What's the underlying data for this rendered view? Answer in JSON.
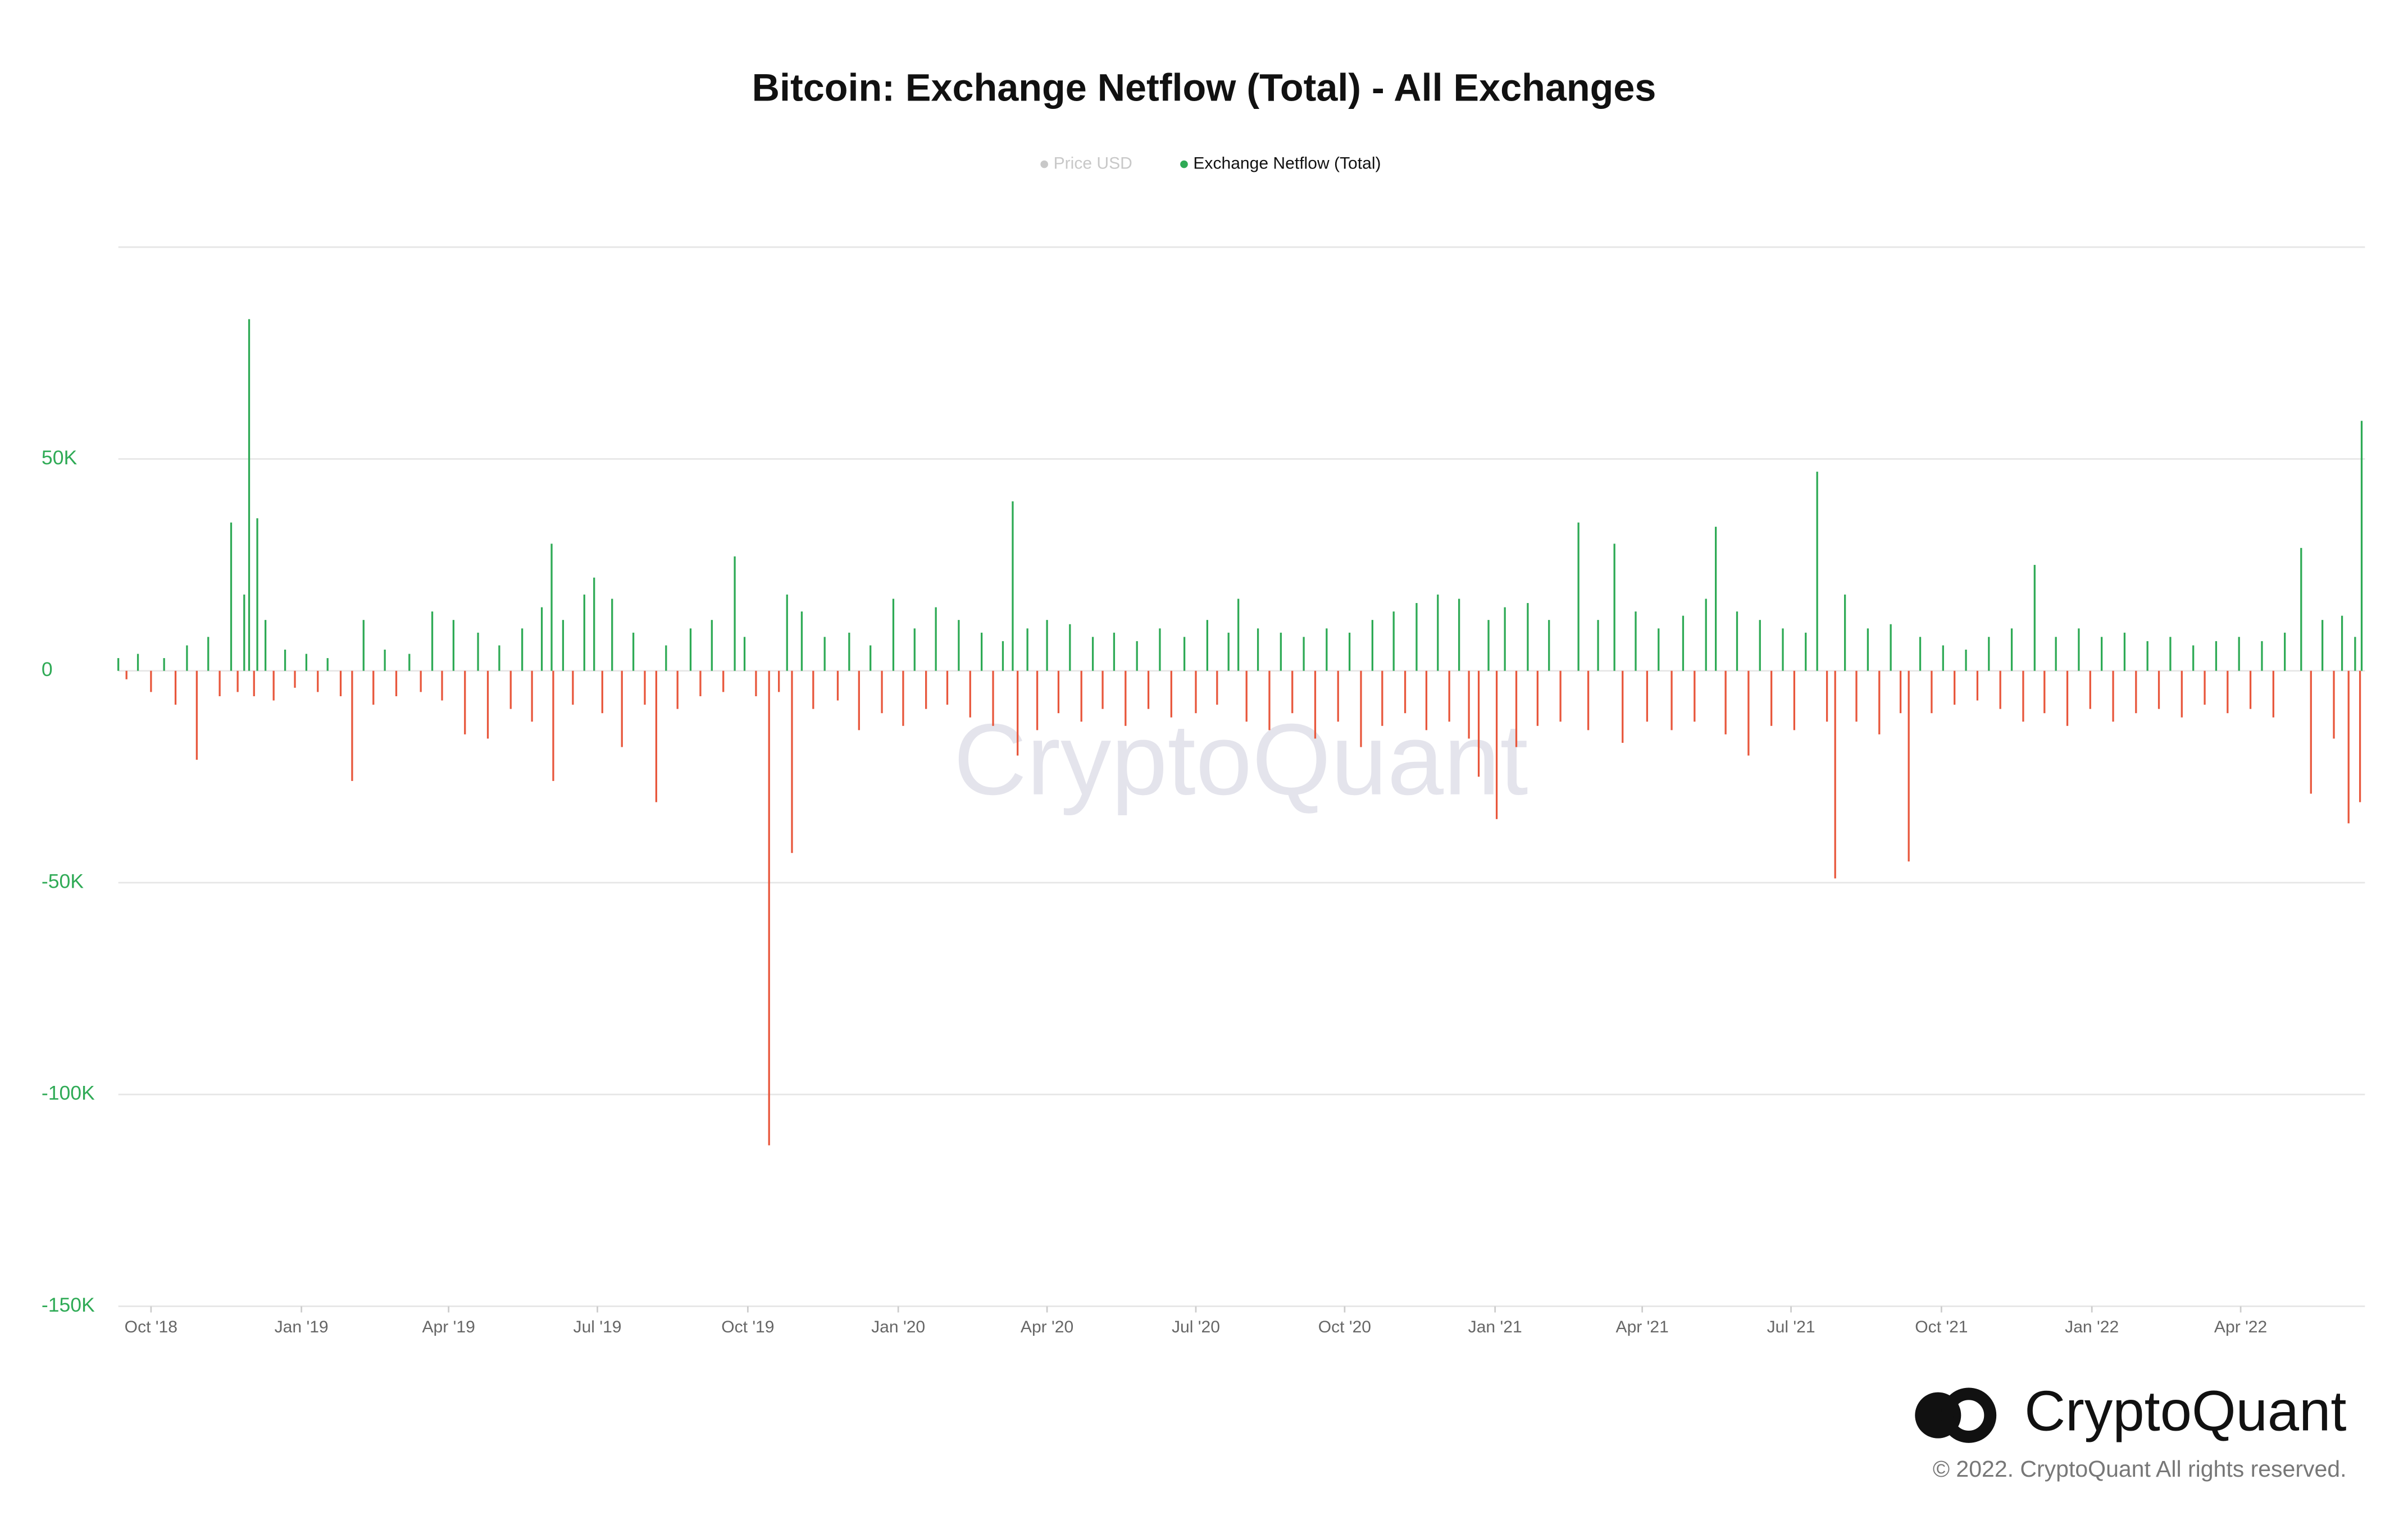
{
  "chart_data": {
    "type": "bar",
    "title": "Bitcoin: Exchange Netflow (Total) - All Exchanges",
    "hidden_series": [
      {
        "name": "Price USD",
        "color": "#c8c8c8"
      }
    ],
    "series": [
      {
        "name": "Exchange Netflow (Total)",
        "color": "#2eaa55",
        "negative_color": "#e8573c",
        "x": [
          0,
          5,
          12,
          20,
          28,
          35,
          42,
          48,
          55,
          62,
          69,
          73,
          77,
          80,
          83,
          85,
          90,
          95,
          102,
          108,
          115,
          122,
          128,
          136,
          143,
          150,
          156,
          163,
          170,
          178,
          185,
          192,
          198,
          205,
          212,
          220,
          226,
          233,
          240,
          247,
          253,
          259,
          265,
          266,
          272,
          278,
          285,
          291,
          296,
          302,
          308,
          315,
          322,
          329,
          335,
          342,
          350,
          356,
          363,
          370,
          377,
          383,
          390,
          398,
          404,
          409,
          412,
          418,
          425,
          432,
          440,
          447,
          453,
          460,
          467,
          474,
          480,
          487,
          494,
          500,
          507,
          514,
          521,
          528,
          535,
          541,
          547,
          550,
          556,
          562,
          568,
          575,
          582,
          589,
          596,
          602,
          609,
          616,
          623,
          630,
          637,
          644,
          652,
          659,
          666,
          672,
          679,
          685,
          690,
          697,
          704,
          711,
          718,
          725,
          732,
          739,
          746,
          753,
          760,
          767,
          773,
          780,
          787,
          794,
          800,
          807,
          814,
          820,
          826,
          832,
          838,
          843,
          848,
          855,
          862,
          868,
          875,
          882,
          893,
          899,
          905,
          915,
          920,
          928,
          935,
          942,
          950,
          957,
          964,
          971,
          977,
          983,
          990,
          997,
          1004,
          1011,
          1018,
          1025,
          1032,
          1039,
          1045,
          1050,
          1056,
          1063,
          1070,
          1077,
          1084,
          1090,
          1095,
          1102,
          1109,
          1116,
          1123,
          1130,
          1137,
          1144,
          1151,
          1158,
          1165,
          1172,
          1178,
          1185,
          1192,
          1199,
          1206,
          1213,
          1220,
          1227,
          1234,
          1241,
          1248,
          1255,
          1262,
          1269,
          1276,
          1283,
          1290,
          1297,
          1304,
          1311,
          1318,
          1325,
          1335,
          1341,
          1348,
          1355,
          1360,
          1364,
          1368,
          1371,
          1372
        ],
        "values": [
          3000,
          -2000,
          4000,
          -5000,
          3000,
          -8000,
          6000,
          -21000,
          8000,
          -6000,
          35000,
          -5000,
          18000,
          83000,
          -6000,
          36000,
          12000,
          -7000,
          5000,
          -4000,
          4000,
          -5000,
          3000,
          -6000,
          -26000,
          12000,
          -8000,
          5000,
          -6000,
          4000,
          -5000,
          14000,
          -7000,
          12000,
          -15000,
          9000,
          -16000,
          6000,
          -9000,
          10000,
          -12000,
          15000,
          30000,
          -26000,
          12000,
          -8000,
          18000,
          22000,
          -10000,
          17000,
          -18000,
          9000,
          -8000,
          -31000,
          6000,
          -9000,
          10000,
          -6000,
          12000,
          -5000,
          27000,
          8000,
          -6000,
          -112000,
          -5000,
          18000,
          -43000,
          14000,
          -9000,
          8000,
          -7000,
          9000,
          -14000,
          6000,
          -10000,
          17000,
          -13000,
          10000,
          -9000,
          15000,
          -8000,
          12000,
          -11000,
          9000,
          -13000,
          7000,
          40000,
          -20000,
          10000,
          -14000,
          12000,
          -10000,
          11000,
          -12000,
          8000,
          -9000,
          9000,
          -13000,
          7000,
          -9000,
          10000,
          -11000,
          8000,
          -10000,
          12000,
          -8000,
          9000,
          17000,
          -12000,
          10000,
          -14000,
          9000,
          -10000,
          8000,
          -16000,
          10000,
          -12000,
          9000,
          -18000,
          12000,
          -13000,
          14000,
          -10000,
          16000,
          -14000,
          18000,
          -12000,
          17000,
          -16000,
          -25000,
          12000,
          -35000,
          15000,
          -18000,
          16000,
          -13000,
          12000,
          -12000,
          35000,
          -14000,
          12000,
          30000,
          -17000,
          14000,
          -12000,
          10000,
          -14000,
          13000,
          -12000,
          17000,
          34000,
          -15000,
          14000,
          -20000,
          12000,
          -13000,
          10000,
          -14000,
          9000,
          47000,
          -12000,
          -49000,
          18000,
          -12000,
          10000,
          -15000,
          11000,
          -10000,
          -45000,
          8000,
          -10000,
          6000,
          -8000,
          5000,
          -7000,
          8000,
          -9000,
          10000,
          -12000,
          25000,
          -10000,
          8000,
          -13000,
          10000,
          -9000,
          8000,
          -12000,
          9000,
          -10000,
          7000,
          -9000,
          8000,
          -11000,
          6000,
          -8000,
          7000,
          -10000,
          8000,
          -9000,
          7000,
          -11000,
          9000,
          29000,
          -29000,
          12000,
          -16000,
          13000,
          -36000,
          8000,
          -31000,
          59000
        ]
      }
    ],
    "xlim": [
      0,
      1374
    ],
    "xticks": [
      {
        "value": 20,
        "label": "Oct '18"
      },
      {
        "value": 112,
        "label": "Jan '19"
      },
      {
        "value": 202,
        "label": "Apr '19"
      },
      {
        "value": 293,
        "label": "Jul '19"
      },
      {
        "value": 385,
        "label": "Oct '19"
      },
      {
        "value": 477,
        "label": "Jan '20"
      },
      {
        "value": 568,
        "label": "Apr '20"
      },
      {
        "value": 659,
        "label": "Jul '20"
      },
      {
        "value": 750,
        "label": "Oct '20"
      },
      {
        "value": 842,
        "label": "Jan '21"
      },
      {
        "value": 932,
        "label": "Apr '21"
      },
      {
        "value": 1023,
        "label": "Jul '21"
      },
      {
        "value": 1115,
        "label": "Oct '21"
      },
      {
        "value": 1207,
        "label": "Jan '22"
      },
      {
        "value": 1298,
        "label": "Apr '22"
      }
    ],
    "ylim": [
      -150000,
      100000
    ],
    "yticks": [
      {
        "value": -150000,
        "label": "-150K"
      },
      {
        "value": -100000,
        "label": "-100K"
      },
      {
        "value": -50000,
        "label": "-50K"
      },
      0,
      {
        "value": 50000,
        "label": "50K"
      }
    ],
    "grid": true,
    "watermark": "CryptoQuant",
    "brand": "CryptoQuant",
    "copyright": "© 2022. CryptoQuant All rights reserved."
  }
}
